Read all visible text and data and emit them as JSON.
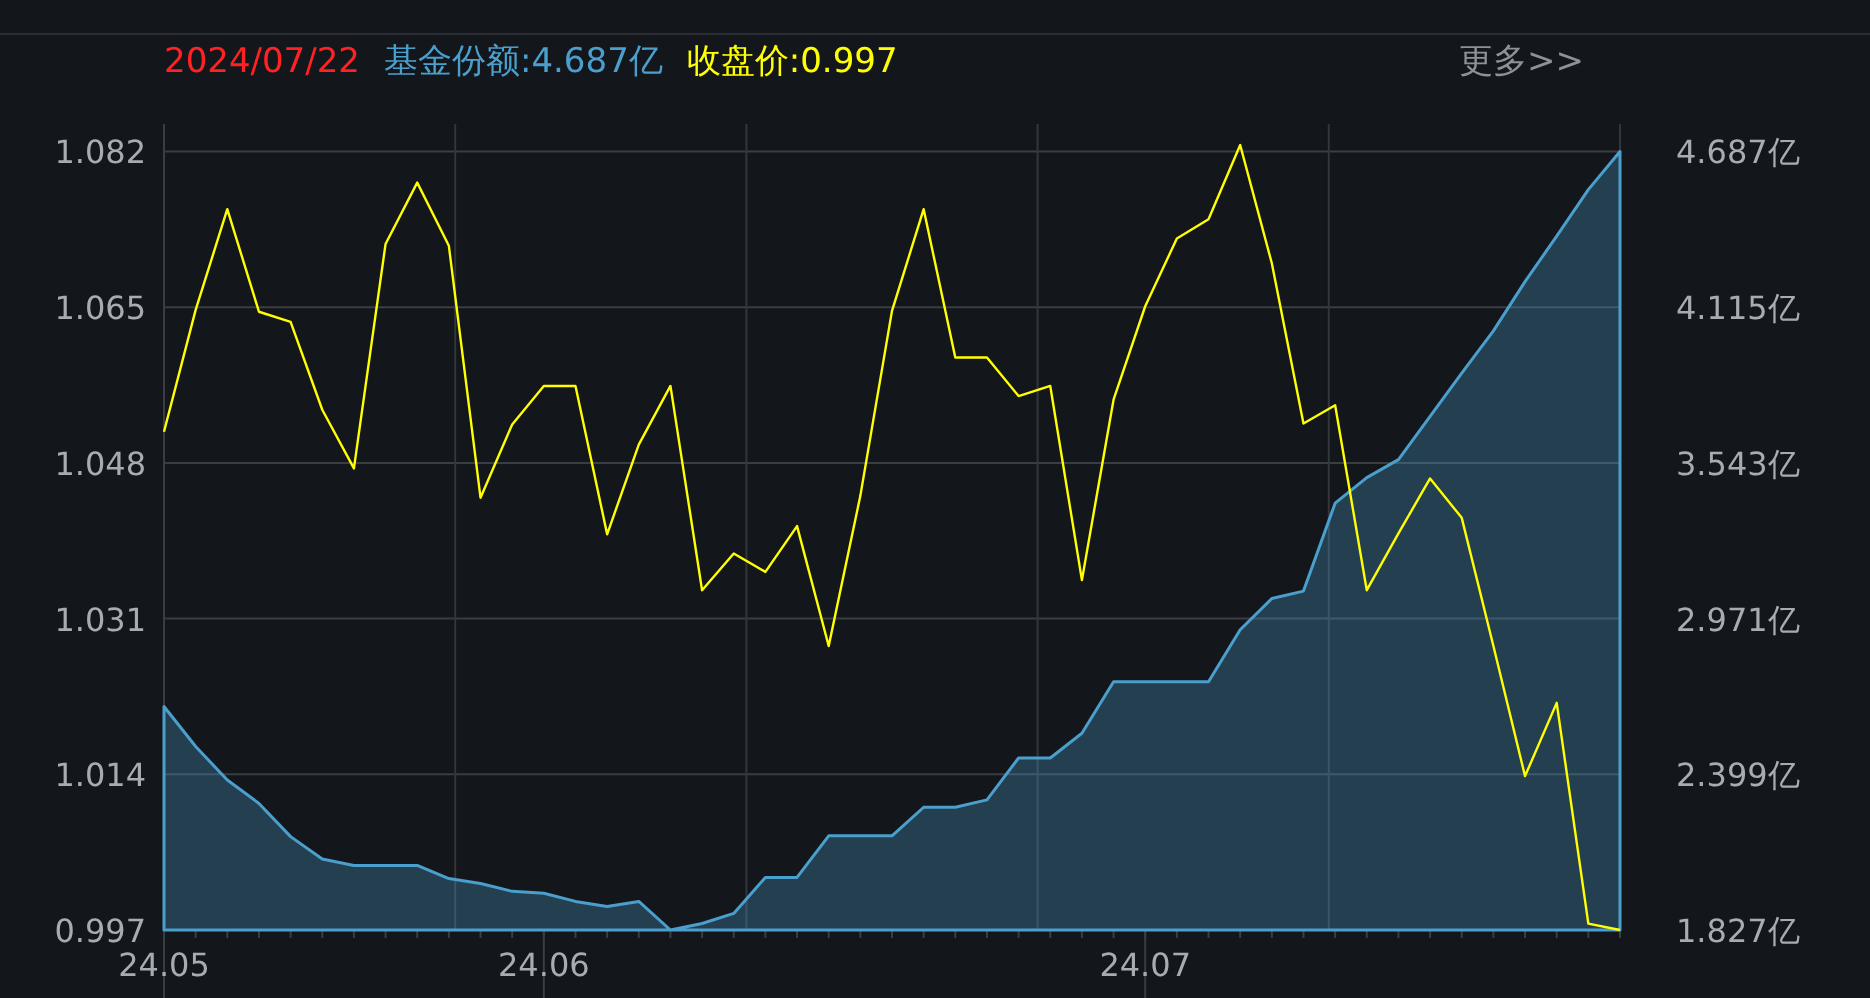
{
  "chart_data": {
    "type": "line",
    "title": "2024/07/22",
    "annotations": [
      "更多>>"
    ],
    "legend": "top left",
    "grid": true,
    "categories": [
      "24.05",
      null,
      null,
      null,
      null,
      null,
      null,
      null,
      null,
      null,
      null,
      null,
      "24.06",
      null,
      null,
      null,
      null,
      null,
      null,
      null,
      null,
      null,
      null,
      null,
      null,
      null,
      null,
      null,
      null,
      null,
      null,
      "24.07",
      null,
      null,
      null,
      null,
      null,
      null,
      null,
      null,
      null,
      null,
      null,
      null,
      null,
      null,
      null
    ],
    "ylim": [
      0.997,
      1.085
    ],
    "yticks": [
      0.997,
      1.014,
      1.031,
      1.048,
      1.065,
      1.082
    ],
    "y2lim": [
      1.827,
      4.788
    ],
    "y2ticks": [
      {
        "value": 1.827,
        "label": "1.827亿"
      },
      {
        "value": 2.399,
        "label": "2.399亿"
      },
      {
        "value": 2.971,
        "label": "2.971亿"
      },
      {
        "value": 3.543,
        "label": "3.543亿"
      },
      {
        "value": 4.115,
        "label": "4.115亿"
      },
      {
        "value": 4.687,
        "label": "4.687亿"
      }
    ],
    "series": [
      {
        "name": "基金份额:4.687亿",
        "type": "area",
        "axis": "y2",
        "color": "#4a9fcc",
        "values": [
          2.648,
          2.501,
          2.378,
          2.292,
          2.17,
          2.088,
          2.064,
          2.064,
          2.064,
          2.016,
          1.998,
          1.969,
          1.962,
          1.932,
          1.913,
          1.932,
          1.827,
          1.851,
          1.888,
          2.02,
          2.02,
          2.173,
          2.173,
          2.173,
          2.278,
          2.278,
          2.305,
          2.459,
          2.459,
          2.55,
          2.739,
          2.739,
          2.739,
          2.739,
          2.93,
          3.045,
          3.072,
          3.395,
          3.489,
          3.555,
          3.714,
          3.873,
          4.028,
          4.209,
          4.376,
          4.547,
          4.687
        ]
      },
      {
        "name": "收盘价:0.997",
        "color": "#ffff00",
        "values": [
          1.0514,
          1.0647,
          1.0757,
          1.0645,
          1.0634,
          1.0538,
          1.0474,
          1.0719,
          1.0786,
          1.0717,
          1.0442,
          1.0522,
          1.0564,
          1.0564,
          1.0402,
          1.05,
          1.0564,
          1.0341,
          1.0381,
          1.0361,
          1.0411,
          1.028,
          1.0444,
          1.0646,
          1.0757,
          1.0595,
          1.0595,
          1.0553,
          1.0564,
          1.0352,
          1.0549,
          1.0651,
          1.0725,
          1.0746,
          1.0827,
          1.0698,
          1.0523,
          1.0543,
          1.0341,
          1.0403,
          1.0463,
          1.042,
          1.028,
          1.0138,
          1.0218,
          0.9977,
          0.997
        ]
      }
    ]
  }
}
